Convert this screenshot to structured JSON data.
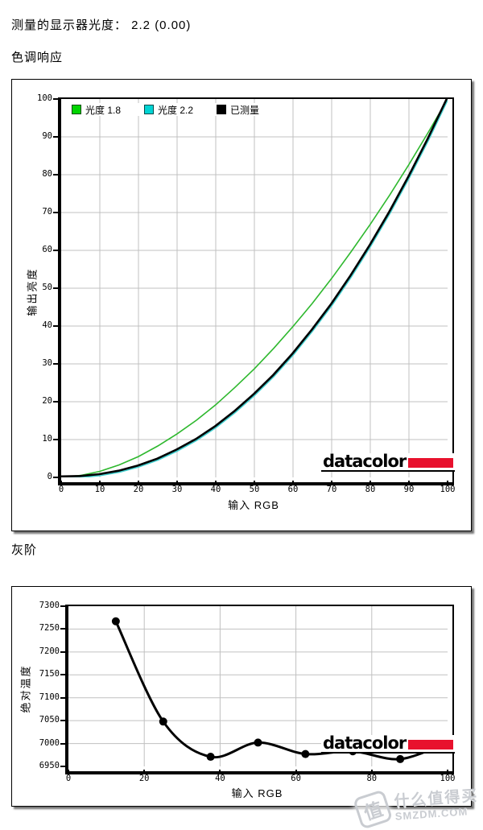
{
  "page": {
    "measured_line": "测量的显示器光度：  2.2 (0.00)",
    "section1_title": "色调响应",
    "section2_title": "灰阶"
  },
  "logo": {
    "text": "datacolor",
    "bar_color": "#e8112d"
  },
  "watermark": {
    "badge_char": "值",
    "site_name": "什么值得买",
    "site_domain": "SMZDM.COM"
  },
  "colors": {
    "grid": "#c0c0c0",
    "axis": "#000000",
    "background": "#ffffff"
  },
  "chart_data": [
    {
      "type": "line",
      "title": "色调响应",
      "xlabel": "输入 RGB",
      "ylabel": "输出亮度",
      "xlim": [
        0,
        100
      ],
      "ylim": [
        0,
        100
      ],
      "xticks": [
        0,
        10,
        20,
        30,
        40,
        50,
        60,
        70,
        80,
        90,
        100
      ],
      "yticks": [
        0,
        10,
        20,
        30,
        40,
        50,
        60,
        70,
        80,
        90,
        100
      ],
      "grid": true,
      "legend_position": "top-left-inside",
      "x": [
        0,
        5,
        10,
        15,
        20,
        25,
        30,
        35,
        40,
        45,
        50,
        55,
        60,
        65,
        70,
        75,
        80,
        85,
        90,
        95,
        100
      ],
      "series": [
        {
          "name": "光度 1.8",
          "gamma": 1.8,
          "color": "#2eb82e",
          "legend_fill": "#00d400",
          "values": [
            0,
            0.5,
            1.6,
            3.3,
            5.5,
            8.3,
            11.5,
            15.1,
            19.2,
            23.8,
            28.7,
            34.1,
            39.9,
            46.0,
            52.6,
            59.6,
            66.9,
            74.6,
            82.7,
            91.2,
            100
          ]
        },
        {
          "name": "光度 2.2",
          "gamma": 2.2,
          "color": "#45d1d1",
          "legend_fill": "#00d4d4",
          "values": [
            0,
            0.1,
            0.6,
            1.5,
            2.9,
            4.7,
            7.1,
            9.9,
            13.3,
            17.3,
            21.8,
            26.8,
            32.5,
            38.8,
            45.6,
            53.1,
            61.2,
            69.9,
            79.3,
            89.3,
            100
          ]
        },
        {
          "name": "已测量",
          "gamma": 2.2,
          "color": "#000000",
          "legend_fill": "#000000",
          "values": [
            0,
            0.1,
            0.6,
            1.5,
            2.9,
            4.7,
            7.1,
            9.9,
            13.3,
            17.3,
            21.8,
            26.8,
            32.5,
            38.8,
            45.6,
            53.1,
            61.2,
            69.9,
            79.3,
            89.3,
            100
          ]
        }
      ]
    },
    {
      "type": "line",
      "title": "灰阶",
      "xlabel": "输入 RGB",
      "ylabel": "绝对温度",
      "xlim": [
        0,
        100
      ],
      "ylim": [
        6950,
        7300
      ],
      "xticks": [
        0,
        20,
        40,
        60,
        80,
        100
      ],
      "yticks": [
        6950,
        7000,
        7050,
        7100,
        7150,
        7200,
        7250,
        7300
      ],
      "grid": true,
      "marker": "circle",
      "color": "#000000",
      "x": [
        12.5,
        25,
        37.5,
        50,
        62.5,
        75,
        87.5,
        100
      ],
      "values": [
        7267,
        7048,
        6971,
        7002,
        6977,
        6983,
        6966,
        7003
      ]
    }
  ]
}
